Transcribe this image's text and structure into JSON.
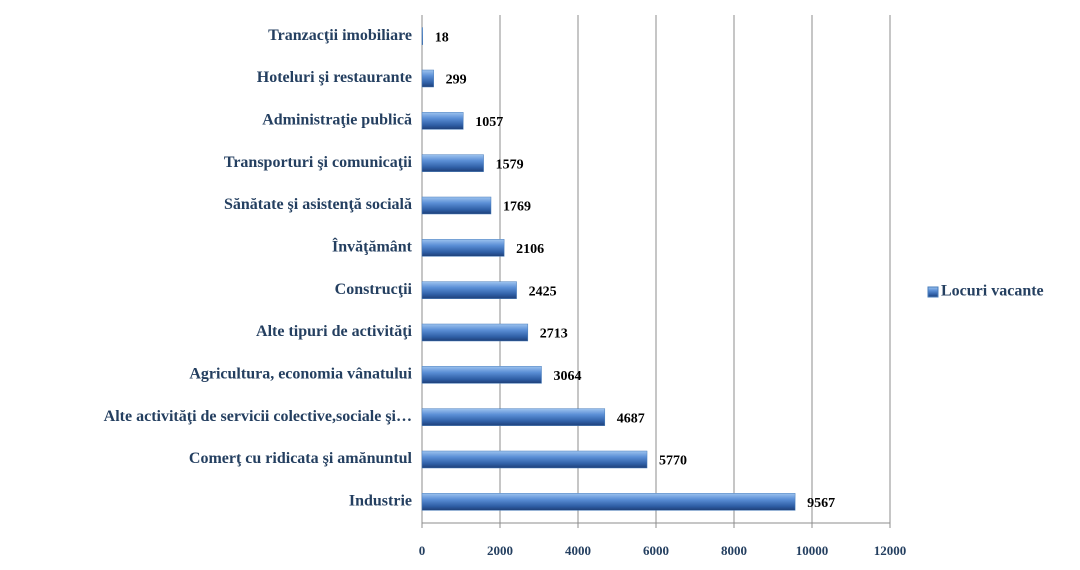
{
  "chart_data": {
    "type": "bar",
    "orientation": "horizontal",
    "categories": [
      "Tranzacţii imobiliare",
      "Hoteluri şi restaurante",
      "Administraţie publică",
      "Transporturi şi comunicaţii",
      "Sănătate şi asistenţă socială",
      "Învăţământ",
      "Construcţii",
      "Alte tipuri de activităţi",
      "Agricultura, economia vânatului",
      "Alte activităţi de servicii colective,sociale şi…",
      "Comerţ cu ridicata şi amănuntul",
      "Industrie"
    ],
    "series": [
      {
        "name": "Locuri vacante",
        "color": "#4a7ebb",
        "values": [
          18,
          299,
          1057,
          1579,
          1769,
          2106,
          2425,
          2713,
          3064,
          4687,
          5770,
          9567
        ]
      }
    ],
    "xlim": [
      0,
      12000
    ],
    "xticks": [
      0,
      2000,
      4000,
      6000,
      8000,
      10000,
      12000
    ],
    "grid": true,
    "legend": "right"
  }
}
